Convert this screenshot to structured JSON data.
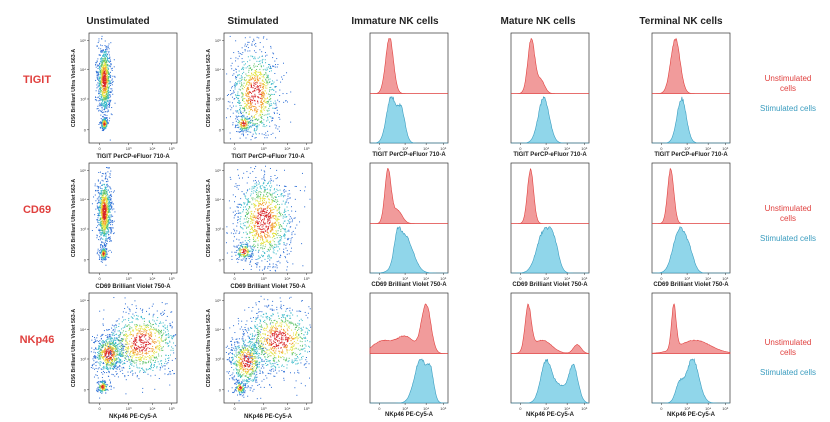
{
  "columns": [
    "Unstimulated",
    "Stimulated",
    "Immature NK cells",
    "Mature NK cells",
    "Terminal NK cells"
  ],
  "rows": [
    {
      "name": "TIGIT",
      "x_axis_label": "TIGIT PerCP-eFluor 710-A",
      "y_axis_label": "CD56 Brilliant Ultra Violet 563-A",
      "legend_unstim": "Unstimulated cells",
      "legend_stim": "Stimulated cells"
    },
    {
      "name": "CD69",
      "x_axis_label": "CD69 Brilliant Violet 750-A",
      "y_axis_label": "CD56 Brilliant Ultra Violet 563-A",
      "legend_unstim": "Unstimulated cells",
      "legend_stim": "Stimulated cells"
    },
    {
      "name": "NKp46",
      "x_axis_label": "NKp46 PE-Cy5-A",
      "y_axis_label": "CD56 Brilliant Ultra Violet 563-A",
      "legend_unstim": "Unstimulated cells",
      "legend_stim": "Stimulated cells"
    }
  ],
  "ticks": {
    "zero": "0",
    "e3": "10³",
    "e4": "10⁴",
    "e5": "10⁵"
  },
  "colors": {
    "unstimulated": "#ef8a8a",
    "unstimulated_line": "#e0403e",
    "stimulated": "#7dcfe6",
    "stimulated_line": "#3a9cbf",
    "row_label": "#e0403e"
  }
}
